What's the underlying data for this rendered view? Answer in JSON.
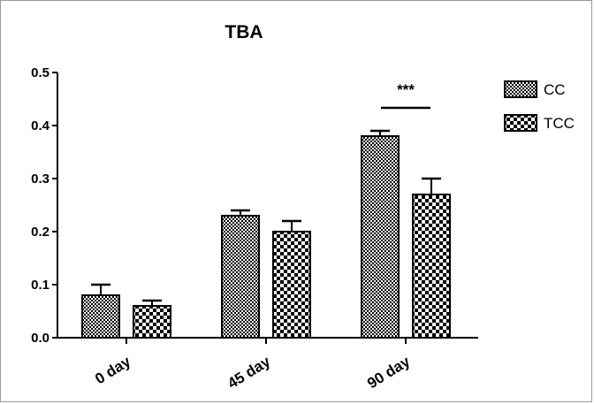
{
  "chart_data": {
    "type": "bar",
    "title": "TBA",
    "xlabel": "",
    "ylabel": "",
    "categories": [
      "0 day",
      "45 day",
      "90 day"
    ],
    "series": [
      {
        "name": "CC",
        "values": [
          0.08,
          0.23,
          0.38
        ],
        "errors": [
          0.02,
          0.01,
          0.01
        ],
        "pattern": "fine-checker"
      },
      {
        "name": "TCC",
        "values": [
          0.06,
          0.2,
          0.27
        ],
        "errors": [
          0.01,
          0.02,
          0.03
        ],
        "pattern": "coarse-checker"
      }
    ],
    "ylim": [
      0,
      0.5
    ],
    "yticks": [
      "0.0",
      "0.1",
      "0.2",
      "0.3",
      "0.4",
      "0.5"
    ],
    "grid": false,
    "legend_position": "top-right",
    "annotations": [
      {
        "text": "***",
        "category": "90 day"
      }
    ],
    "colors": {
      "bar_fill": "#000000",
      "bar_pattern_bg": "#ffffff",
      "axis": "#000000"
    }
  }
}
